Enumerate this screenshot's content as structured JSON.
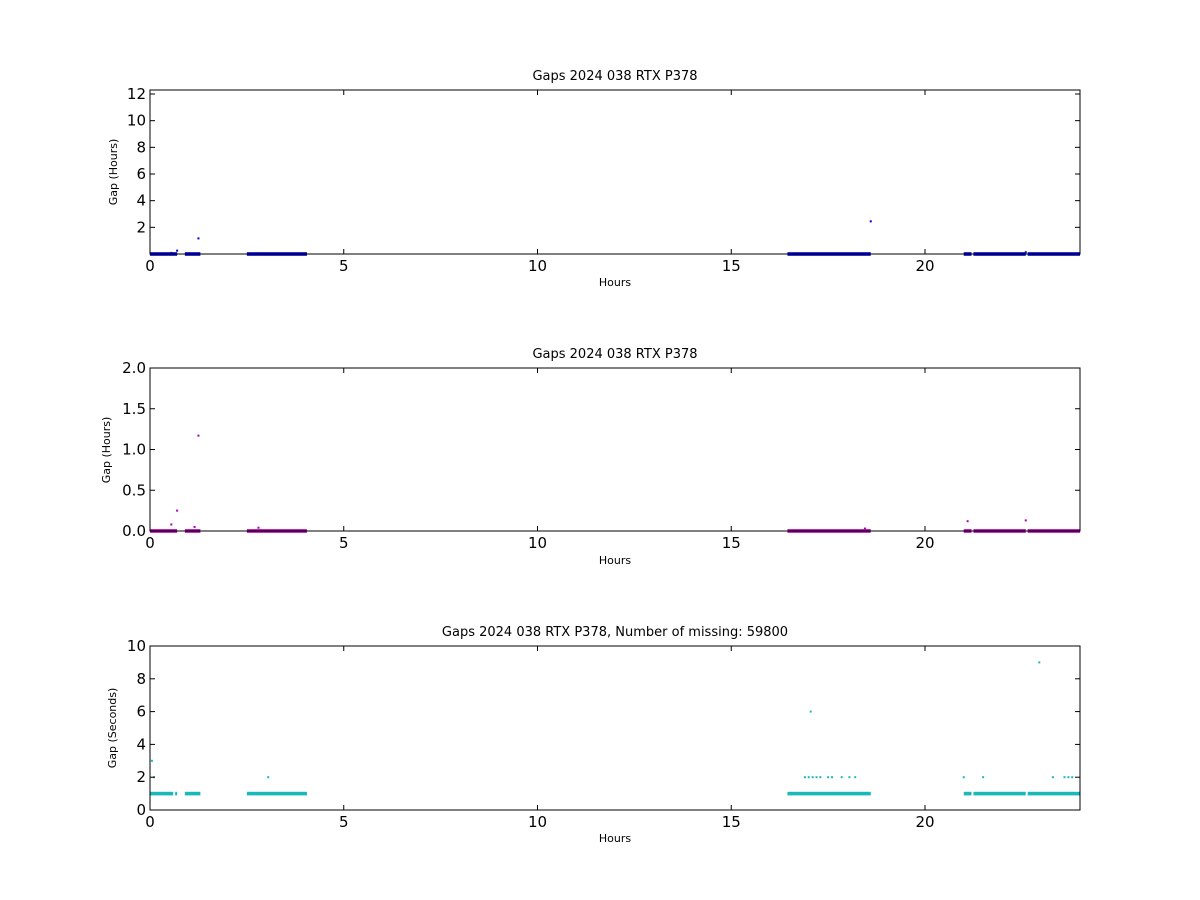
{
  "chart_data": [
    {
      "type": "scatter",
      "title": "Gaps 2024 038 RTX  P378",
      "xlabel": "Hours",
      "ylabel": "Gap (Hours)",
      "xlim": [
        0,
        24
      ],
      "ylim": [
        0,
        12.3
      ],
      "xticks": [
        "0",
        "5",
        "10",
        "15",
        "20"
      ],
      "yticks": [
        "2",
        "4",
        "6",
        "8",
        "10",
        "12"
      ],
      "grid": false,
      "color": "#0000cc",
      "bands": [
        [
          0.0,
          0.7
        ],
        [
          0.9,
          1.3
        ],
        [
          2.5,
          4.05
        ],
        [
          16.45,
          18.6
        ],
        [
          21.0,
          21.2
        ],
        [
          21.25,
          22.6
        ],
        [
          22.65,
          24.0
        ]
      ],
      "band_value": 0.0003,
      "points": [
        [
          0.7,
          0.25
        ],
        [
          0.55,
          0.08
        ],
        [
          1.25,
          1.17
        ],
        [
          18.6,
          2.45
        ],
        [
          22.6,
          0.13
        ],
        [
          2.8,
          0.04
        ]
      ]
    },
    {
      "type": "scatter",
      "title": "Gaps 2024 038 RTX  P378",
      "xlabel": "Hours",
      "ylabel": "Gap (Hours)",
      "xlim": [
        0,
        24
      ],
      "ylim": [
        0,
        2.0
      ],
      "xticks": [
        "0",
        "5",
        "10",
        "15",
        "20"
      ],
      "yticks": [
        "0.0",
        "0.5",
        "1.0",
        "1.5",
        "2.0"
      ],
      "grid": false,
      "color": "#aa00aa",
      "bands": [
        [
          0.0,
          0.7
        ],
        [
          0.9,
          1.3
        ],
        [
          2.5,
          4.05
        ],
        [
          16.45,
          18.6
        ],
        [
          21.0,
          21.2
        ],
        [
          21.25,
          22.6
        ],
        [
          22.65,
          24.0
        ]
      ],
      "band_value": 0.0003,
      "points": [
        [
          0.55,
          0.08
        ],
        [
          0.7,
          0.25
        ],
        [
          1.25,
          1.17
        ],
        [
          2.8,
          0.04
        ],
        [
          18.45,
          0.03
        ],
        [
          21.1,
          0.12
        ],
        [
          22.6,
          0.13
        ],
        [
          1.15,
          0.05
        ]
      ]
    },
    {
      "type": "scatter",
      "title": "Gaps 2024 038 RTX  P378, Number of missing: 59800",
      "xlabel": "Hours",
      "ylabel": "Gap (Seconds)",
      "xlim": [
        0,
        24
      ],
      "ylim": [
        0,
        10
      ],
      "xticks": [
        "0",
        "5",
        "10",
        "15",
        "20"
      ],
      "yticks": [
        "0",
        "2",
        "4",
        "6",
        "8",
        "10"
      ],
      "grid": false,
      "color": "#1ab8b8",
      "bands": [
        [
          0.0,
          0.6
        ],
        [
          0.65,
          0.7
        ],
        [
          0.9,
          1.3
        ],
        [
          2.5,
          4.05
        ],
        [
          16.45,
          18.6
        ],
        [
          21.0,
          21.2
        ],
        [
          21.25,
          22.6
        ],
        [
          22.65,
          24.0
        ]
      ],
      "band_value": 1,
      "points": [
        [
          0.05,
          3
        ],
        [
          0.1,
          2
        ],
        [
          3.05,
          2
        ],
        [
          16.9,
          2
        ],
        [
          17.0,
          2
        ],
        [
          17.1,
          2
        ],
        [
          17.2,
          2
        ],
        [
          17.3,
          2
        ],
        [
          17.05,
          6
        ],
        [
          17.5,
          2
        ],
        [
          17.6,
          2
        ],
        [
          17.85,
          2
        ],
        [
          18.05,
          2
        ],
        [
          18.2,
          2
        ],
        [
          21.0,
          2
        ],
        [
          21.5,
          2
        ],
        [
          22.95,
          9
        ],
        [
          23.3,
          2
        ],
        [
          23.6,
          2
        ],
        [
          23.7,
          2
        ],
        [
          23.8,
          2
        ]
      ]
    }
  ]
}
